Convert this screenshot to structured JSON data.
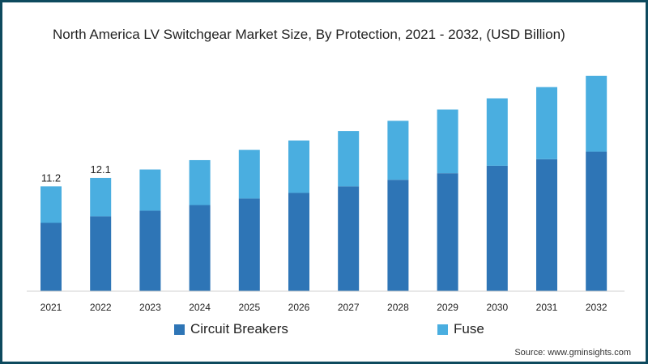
{
  "title": "North America LV Switchgear Market Size, By Protection, 2021 - 2032, (USD Billion)",
  "source": "Source: www.gminsights.com",
  "colors": {
    "frame": "#0d4a5e",
    "circuit_breakers": "#2e75b6",
    "fuse": "#4aaee0"
  },
  "chart_data": {
    "type": "bar",
    "stacked": true,
    "title": "North America LV Switchgear Market Size, By Protection, 2021 - 2032, (USD Billion)",
    "categories": [
      "2021",
      "2022",
      "2023",
      "2024",
      "2025",
      "2026",
      "2027",
      "2028",
      "2029",
      "2030",
      "2031",
      "2032"
    ],
    "series": [
      {
        "name": "Circuit Breakers",
        "values": [
          7.3,
          8.0,
          8.6,
          9.2,
          9.9,
          10.5,
          11.2,
          11.9,
          12.6,
          13.4,
          14.1,
          14.9
        ]
      },
      {
        "name": "Fuse",
        "values": [
          3.9,
          4.1,
          4.4,
          4.8,
          5.2,
          5.6,
          5.9,
          6.3,
          6.8,
          7.2,
          7.7,
          8.1
        ]
      }
    ],
    "totals_labels": [
      "11.2",
      "12.1",
      "",
      "",
      "",
      "",
      "",
      "",
      "",
      "",
      "",
      ""
    ],
    "ylim": [
      0,
      23.5
    ],
    "yaxis_visible": false,
    "grid": false,
    "legend_position": "bottom"
  }
}
